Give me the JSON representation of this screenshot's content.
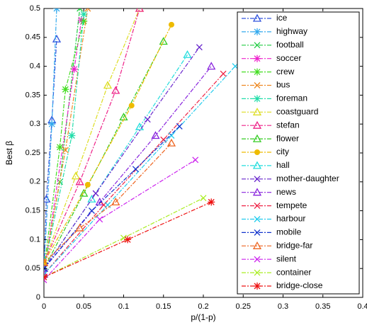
{
  "chart_data": {
    "type": "line",
    "xlabel": "p/(1-p)",
    "ylabel": "Best β",
    "xlim": [
      0,
      0.4
    ],
    "ylim": [
      0,
      0.5
    ],
    "xticks": [
      0,
      0.05,
      0.1,
      0.15,
      0.2,
      0.25,
      0.3,
      0.35,
      0.4
    ],
    "yticks": [
      0,
      0.05,
      0.1,
      0.15,
      0.2,
      0.25,
      0.3,
      0.35,
      0.4,
      0.45,
      0.5
    ],
    "legend": "upper right",
    "series": [
      {
        "name": "ice",
        "color": "#3355dd",
        "marker": "triangle",
        "x": [
          0,
          0.003,
          0.01,
          0.016
        ],
        "values": [
          0.04,
          0.17,
          0.307,
          0.447
        ]
      },
      {
        "name": "highway",
        "color": "#33aaee",
        "marker": "star",
        "x": [
          0,
          0.01,
          0.016
        ],
        "values": [
          0.05,
          0.3,
          0.5
        ]
      },
      {
        "name": "football",
        "color": "#22cc44",
        "marker": "x",
        "x": [
          0,
          0.02,
          0.045
        ],
        "values": [
          0.05,
          0.2,
          0.5
        ]
      },
      {
        "name": "soccer",
        "color": "#ee22cc",
        "marker": "star",
        "x": [
          0,
          0.038,
          0.047
        ],
        "values": [
          0.04,
          0.395,
          0.48
        ]
      },
      {
        "name": "crew",
        "color": "#44dd22",
        "marker": "star",
        "x": [
          0,
          0.02,
          0.027,
          0.05
        ],
        "values": [
          0.05,
          0.26,
          0.36,
          0.478
        ]
      },
      {
        "name": "bus",
        "color": "#ee8822",
        "marker": "x",
        "x": [
          0,
          0.027,
          0.055
        ],
        "values": [
          0.05,
          0.255,
          0.5
        ]
      },
      {
        "name": "foreman",
        "color": "#22ddaa",
        "marker": "star",
        "x": [
          0,
          0.035,
          0.05
        ],
        "values": [
          0.05,
          0.28,
          0.49
        ]
      },
      {
        "name": "coastguard",
        "color": "#dddd22",
        "marker": "triangle",
        "x": [
          0,
          0.04,
          0.08,
          0.12
        ],
        "values": [
          0.06,
          0.21,
          0.367,
          0.5
        ]
      },
      {
        "name": "stefan",
        "color": "#ee2288",
        "marker": "triangle",
        "x": [
          0,
          0.045,
          0.09,
          0.12
        ],
        "values": [
          0.06,
          0.2,
          0.358,
          0.5
        ]
      },
      {
        "name": "flower",
        "color": "#33cc22",
        "marker": "triangle",
        "x": [
          0,
          0.05,
          0.1,
          0.15
        ],
        "values": [
          0.05,
          0.18,
          0.312,
          0.443
        ]
      },
      {
        "name": "city",
        "color": "#eebb00",
        "marker": "circle",
        "x": [
          0,
          0.055,
          0.11,
          0.16
        ],
        "values": [
          0.06,
          0.195,
          0.332,
          0.472
        ]
      },
      {
        "name": "hall",
        "color": "#22dddd",
        "marker": "triangle",
        "x": [
          0,
          0.06,
          0.12,
          0.18
        ],
        "values": [
          0.05,
          0.17,
          0.295,
          0.42
        ]
      },
      {
        "name": "mother-daughter",
        "color": "#6622cc",
        "marker": "x",
        "x": [
          0,
          0.065,
          0.13,
          0.195
        ],
        "values": [
          0.05,
          0.18,
          0.308,
          0.433
        ]
      },
      {
        "name": "news",
        "color": "#8822dd",
        "marker": "triangle",
        "x": [
          0,
          0.07,
          0.14,
          0.21
        ],
        "values": [
          0.05,
          0.165,
          0.28,
          0.4
        ]
      },
      {
        "name": "tempete",
        "color": "#ee2244",
        "marker": "x",
        "x": [
          0,
          0.075,
          0.15,
          0.225
        ],
        "values": [
          0.04,
          0.16,
          0.273,
          0.387
        ]
      },
      {
        "name": "harbour",
        "color": "#22ccee",
        "marker": "x",
        "x": [
          0,
          0.08,
          0.16,
          0.24
        ],
        "values": [
          0.04,
          0.16,
          0.28,
          0.4
        ]
      },
      {
        "name": "mobile",
        "color": "#1133cc",
        "marker": "x",
        "x": [
          0,
          0.06,
          0.115,
          0.17
        ],
        "values": [
          0.05,
          0.15,
          0.222,
          0.296
        ]
      },
      {
        "name": "bridge-far",
        "color": "#ee6622",
        "marker": "triangle",
        "x": [
          0,
          0.045,
          0.09,
          0.16
        ],
        "values": [
          0.06,
          0.12,
          0.165,
          0.267
        ]
      },
      {
        "name": "silent",
        "color": "#cc22ee",
        "marker": "x",
        "x": [
          0,
          0.07,
          0.19
        ],
        "values": [
          0.03,
          0.135,
          0.238
        ]
      },
      {
        "name": "container",
        "color": "#aaee22",
        "marker": "x",
        "x": [
          0,
          0.1,
          0.2
        ],
        "values": [
          0.035,
          0.103,
          0.172
        ]
      },
      {
        "name": "bridge-close",
        "color": "#ee1111",
        "marker": "star",
        "x": [
          0,
          0.105,
          0.21
        ],
        "values": [
          0.035,
          0.1,
          0.165
        ]
      }
    ]
  }
}
